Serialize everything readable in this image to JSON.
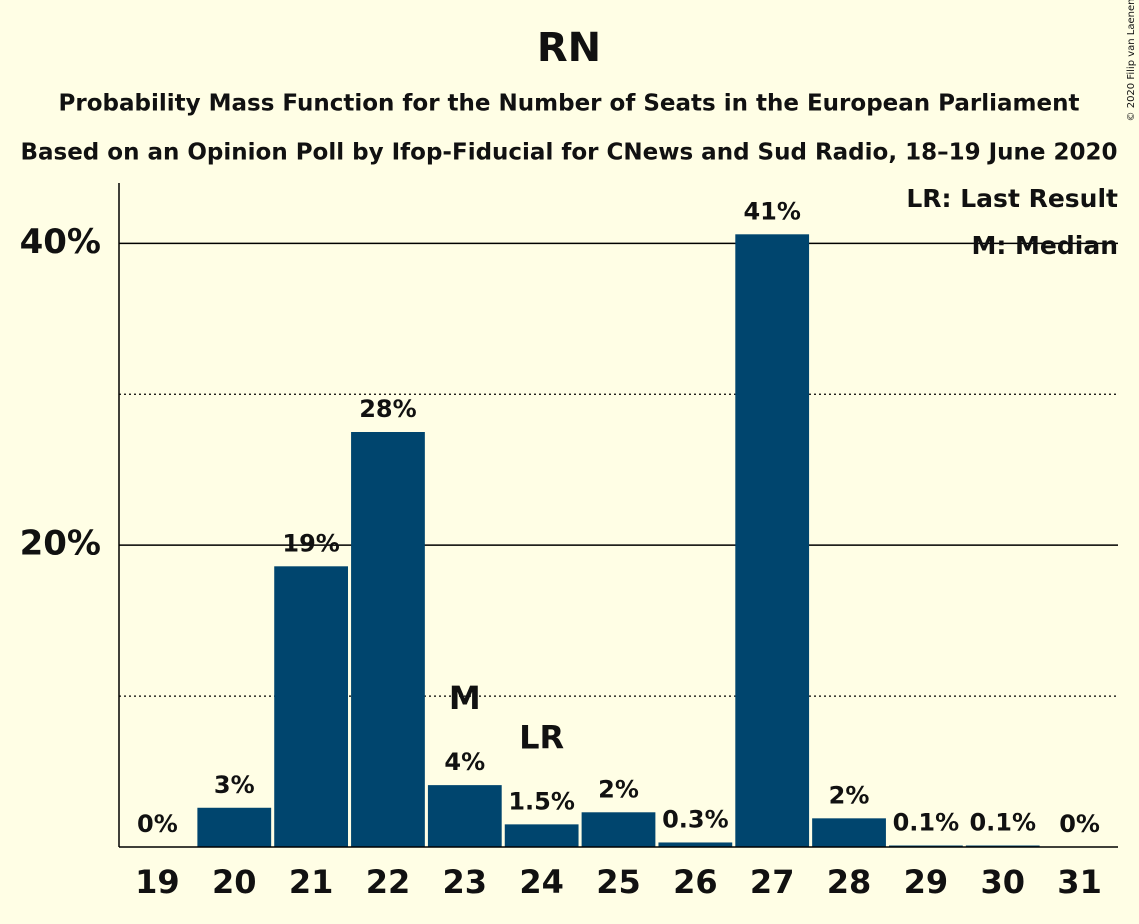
{
  "chart_data": {
    "type": "bar",
    "title": "RN",
    "subtitle": [
      "Probability Mass Function for the Number of Seats in the European Parliament",
      "Based on an Opinion Poll by Ifop-Fiducial for CNews and Sud Radio, 18–19 June 2020"
    ],
    "categories": [
      "19",
      "20",
      "21",
      "22",
      "23",
      "24",
      "25",
      "26",
      "27",
      "28",
      "29",
      "30",
      "31"
    ],
    "values": [
      0,
      2.6,
      18.6,
      27.5,
      4.1,
      1.5,
      2.3,
      0.3,
      40.6,
      1.9,
      0.1,
      0.1,
      0
    ],
    "value_labels": [
      "0%",
      "3%",
      "19%",
      "28%",
      "4%",
      "1.5%",
      "2%",
      "0.3%",
      "41%",
      "2%",
      "0.1%",
      "0.1%",
      "0%"
    ],
    "color": "#00456e",
    "ylim": [
      0,
      44
    ],
    "yticks": [
      {
        "value": 20,
        "label": "20%"
      },
      {
        "value": 40,
        "label": "40%"
      }
    ],
    "minor_yticks": [
      10,
      30
    ],
    "grid": true,
    "annotations": [
      {
        "text": "M",
        "category": "23"
      },
      {
        "text": "LR",
        "category": "24"
      }
    ],
    "legend": [
      "LR: Last Result",
      "M: Median"
    ],
    "legend_position": "top-right",
    "copyright": "© 2020 Filip van Laenen"
  }
}
